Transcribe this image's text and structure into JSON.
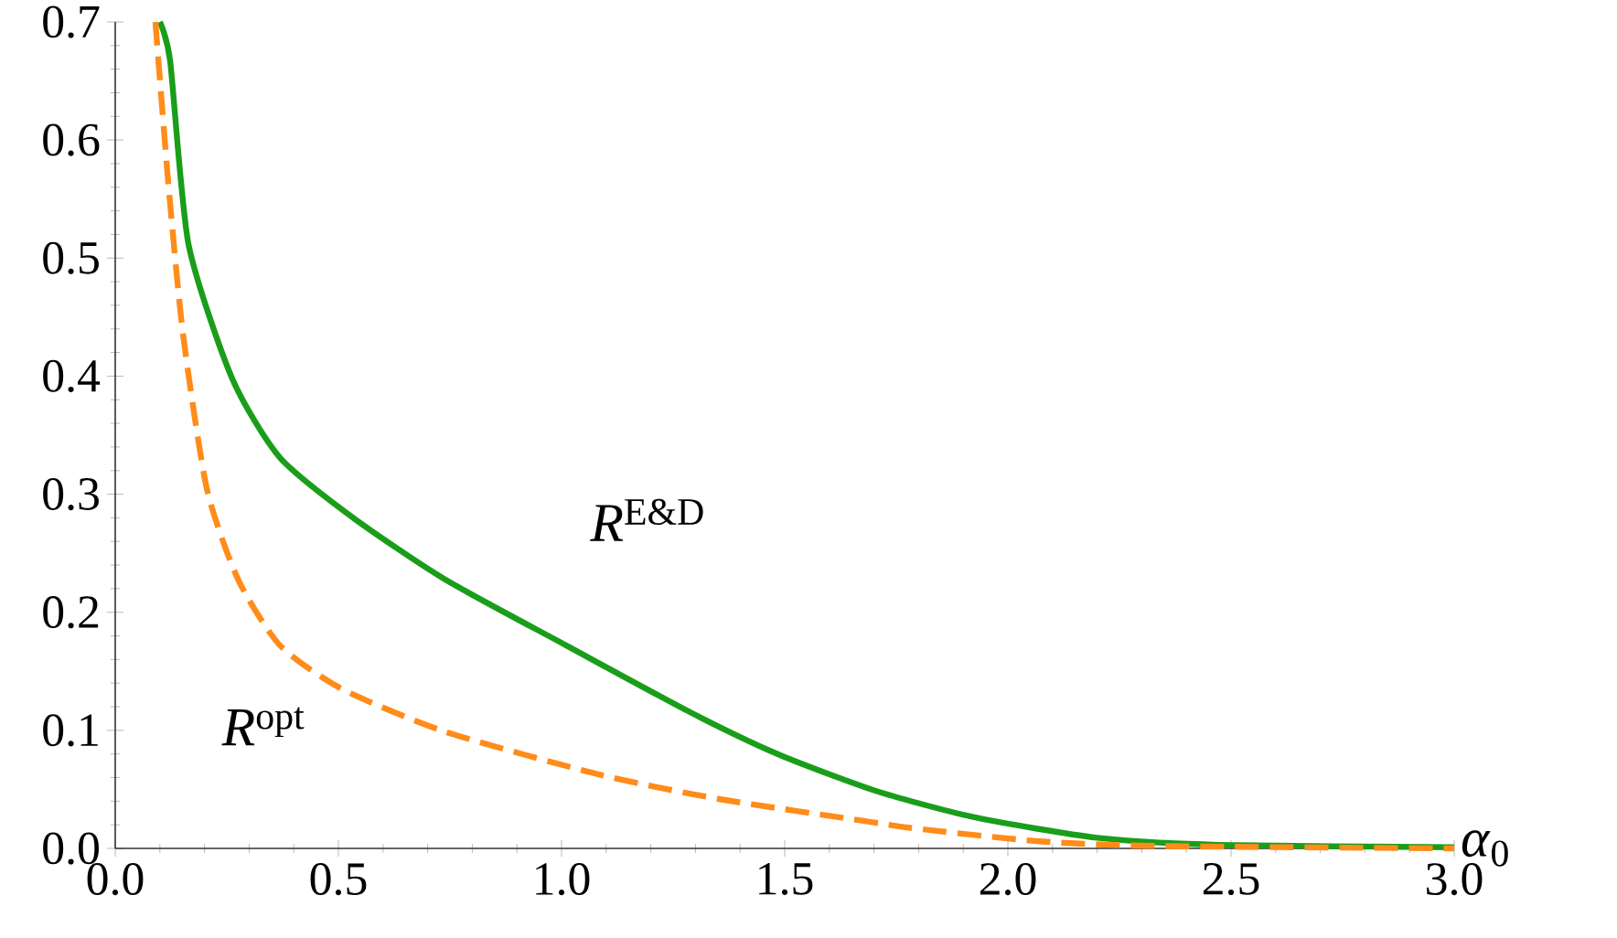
{
  "chart_data": {
    "type": "line",
    "xlabel": "*α*$_{0}$",
    "xlim": [
      0,
      3.0
    ],
    "ylim": [
      0,
      0.7
    ],
    "xticks": [
      {
        "value": 0,
        "label": "0.0"
      },
      {
        "value": 0.5,
        "label": "0.5"
      },
      {
        "value": 1,
        "label": "1.0"
      },
      {
        "value": 1.5,
        "label": "1.5"
      },
      {
        "value": 2,
        "label": "2.0"
      },
      {
        "value": 2.5,
        "label": "2.5"
      },
      {
        "value": 3,
        "label": "3.0"
      }
    ],
    "yticks": [
      {
        "value": 0,
        "label": "0.0"
      },
      0.1,
      0.2,
      0.3,
      0.4,
      0.5,
      0.6,
      0.7
    ],
    "grid": false,
    "legend": false,
    "series": [
      {
        "name": "*R*$^{E&D}$",
        "color": "#1a9e1a",
        "line_style": "solid",
        "x": [
          0.1,
          0.123,
          0.164,
          0.262,
          0.369,
          0.533,
          0.738,
          1.01,
          1.29,
          1.49,
          1.71,
          1.93,
          2.2,
          2.47,
          3.0
        ],
        "values": [
          0.7,
          0.667,
          0.512,
          0.398,
          0.331,
          0.28,
          0.228,
          0.172,
          0.115,
          0.079,
          0.048,
          0.026,
          0.009,
          0.003,
          0.001
        ]
      },
      {
        "name": "*R*$^{opt}$",
        "color": "#ff8c1a",
        "line_style": "dashed",
        "x": [
          0.09,
          0.119,
          0.152,
          0.205,
          0.275,
          0.369,
          0.508,
          0.738,
          1.08,
          1.35,
          1.7,
          1.79,
          2.07,
          2.34,
          3.0
        ],
        "values": [
          0.7,
          0.563,
          0.435,
          0.305,
          0.228,
          0.172,
          0.135,
          0.099,
          0.063,
          0.042,
          0.022,
          0.017,
          0.006,
          0.002,
          0.0
        ]
      }
    ]
  }
}
